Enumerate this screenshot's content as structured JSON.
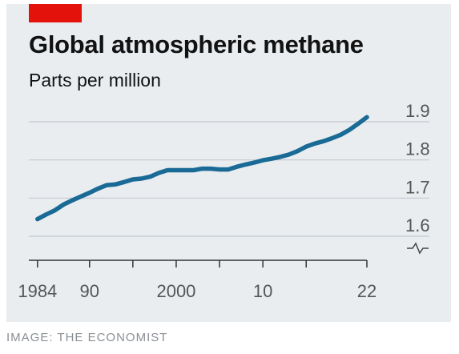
{
  "chart_data": {
    "type": "line",
    "title": "Global atmospheric methane",
    "subtitle": "Parts per million",
    "xlabel": "",
    "ylabel": "",
    "x_tick_labels": [
      "1984",
      "90",
      "2000",
      "10",
      "22"
    ],
    "x_tick_values": [
      1984,
      1990,
      2000,
      2010,
      2022
    ],
    "y_tick_labels": [
      "1.6",
      "1.7",
      "1.8",
      "1.9"
    ],
    "y_tick_values": [
      1.6,
      1.7,
      1.8,
      1.9
    ],
    "xlim": [
      1983,
      2022
    ],
    "ylim": [
      1.6,
      1.9
    ],
    "y_axis_broken": true,
    "grid": true,
    "series": [
      {
        "color": "#1a6a96",
        "x": [
          1984,
          1985,
          1986,
          1987,
          1988,
          1989,
          1990,
          1991,
          1992,
          1993,
          1994,
          1995,
          1996,
          1997,
          1998,
          1999,
          2000,
          2001,
          2002,
          2003,
          2004,
          2005,
          2006,
          2007,
          2008,
          2009,
          2010,
          2011,
          2012,
          2013,
          2014,
          2015,
          2016,
          2017,
          2018,
          2019,
          2020,
          2021,
          2022
        ],
        "values": [
          1.645,
          1.657,
          1.668,
          1.683,
          1.694,
          1.704,
          1.714,
          1.725,
          1.734,
          1.736,
          1.742,
          1.749,
          1.751,
          1.756,
          1.766,
          1.773,
          1.773,
          1.773,
          1.773,
          1.777,
          1.777,
          1.775,
          1.775,
          1.782,
          1.788,
          1.793,
          1.799,
          1.803,
          1.808,
          1.814,
          1.823,
          1.835,
          1.843,
          1.849,
          1.857,
          1.866,
          1.879,
          1.895,
          1.912
        ]
      }
    ]
  },
  "caption": "IMAGE: THE ECONOMIST",
  "colors": {
    "brand_red": "#e3120b",
    "line": "#1a6a96",
    "grid": "#c3c9ce",
    "card_bg": "#e9edf0"
  }
}
